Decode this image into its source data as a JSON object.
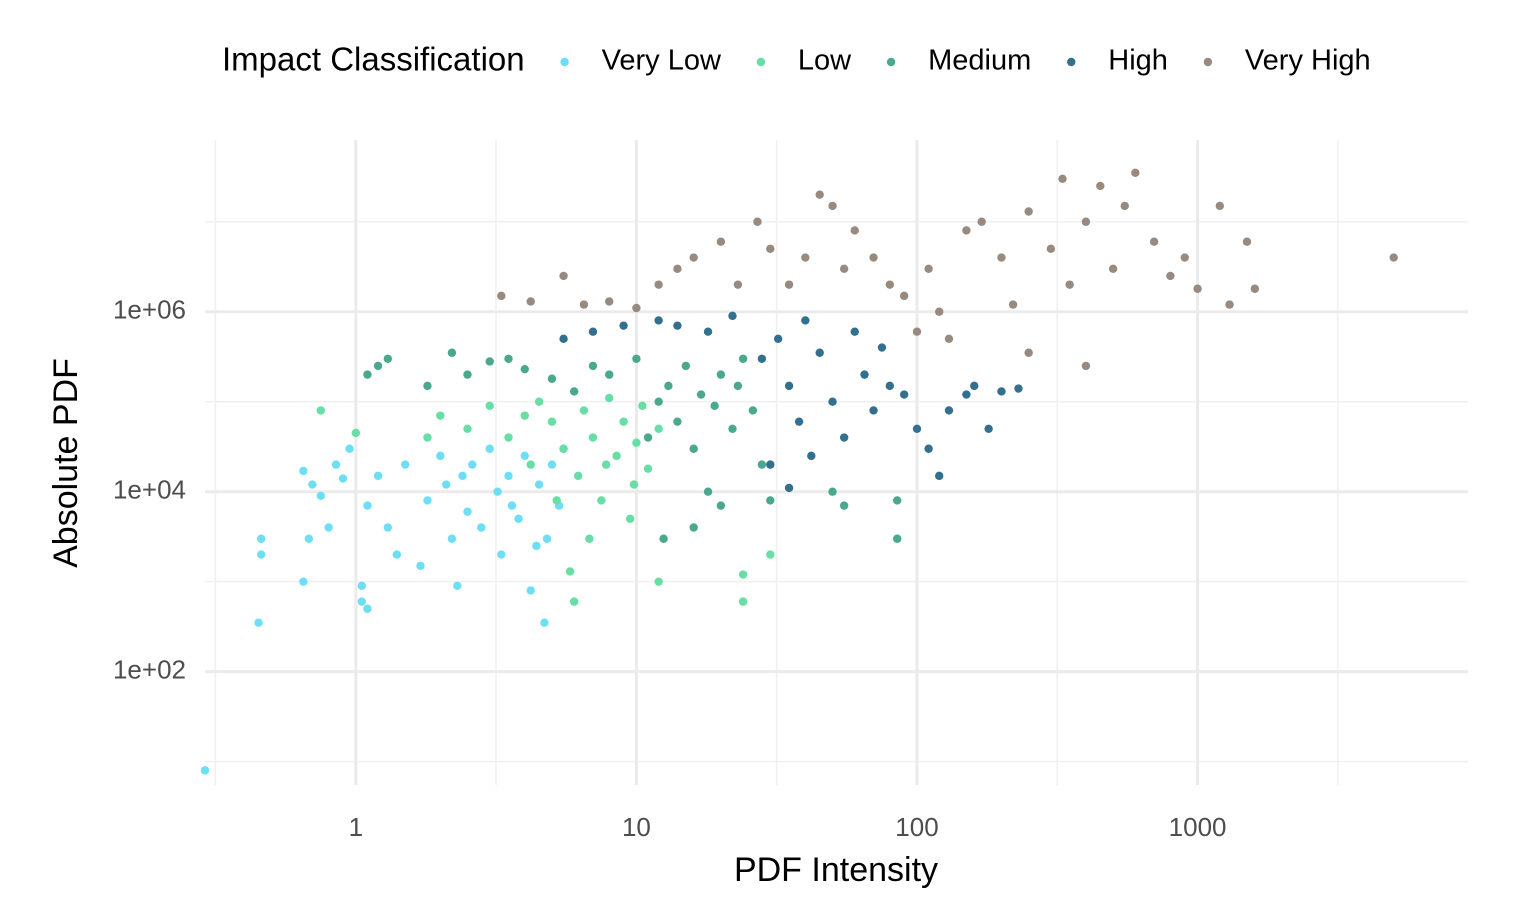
{
  "chart_data": {
    "type": "scatter",
    "xlabel": "PDF Intensity",
    "ylabel": "Absolute PDF",
    "legend_title": "Impact Classification",
    "legend": "top",
    "log_x": true,
    "log_y": true,
    "grid": true,
    "xlim": [
      0.29,
      9200
    ],
    "ylim": [
      5.5,
      81000000
    ],
    "xticks": [
      1,
      10,
      100,
      1000
    ],
    "xminor": [
      0.316,
      3.16,
      31.6,
      316,
      3162
    ],
    "yticks": [
      {
        "value": 100,
        "label": "1e+02"
      },
      {
        "value": 10000,
        "label": "1e+04"
      },
      {
        "value": 1000000,
        "label": "1e+06"
      }
    ],
    "yminor": [
      10,
      1000,
      100000,
      10000000
    ],
    "series": [
      {
        "name": "Very Low",
        "color": "#6ddff5",
        "x": [
          0.29,
          0.45,
          0.46,
          0.46,
          0.65,
          0.65,
          0.68,
          0.7,
          0.75,
          0.8,
          0.85,
          0.9,
          0.95,
          1.05,
          1.05,
          1.1,
          1.1,
          1.2,
          1.3,
          1.4,
          1.5,
          1.7,
          1.8,
          2.0,
          2.1,
          2.2,
          2.3,
          2.5,
          2.6,
          2.8,
          3.0,
          3.2,
          3.3,
          3.5,
          3.8,
          4.0,
          4.2,
          4.5,
          4.7,
          4.8,
          5.0,
          5.3,
          5.5,
          2.4,
          3.6,
          4.4
        ],
        "values": [
          8,
          350,
          2000,
          3000,
          1000,
          17000,
          3000,
          12000,
          9000,
          4000,
          20000,
          14000,
          30000,
          600,
          900,
          500,
          7000,
          15000,
          4000,
          2000,
          20000,
          1500,
          8000,
          25000,
          12000,
          3000,
          900,
          6000,
          20000,
          4000,
          30000,
          10000,
          2000,
          15000,
          5000,
          25000,
          800,
          12000,
          350,
          3000,
          20000,
          7000,
          30000,
          15000,
          7000,
          2500
        ]
      },
      {
        "name": "Low",
        "color": "#66dea4",
        "x": [
          0.75,
          1.0,
          1.8,
          2.0,
          2.5,
          3.0,
          3.5,
          4.0,
          4.5,
          5.0,
          5.5,
          5.8,
          6.0,
          6.2,
          6.5,
          7.0,
          7.5,
          8.0,
          8.5,
          9.0,
          9.5,
          10,
          10.5,
          11,
          12,
          12,
          6.8,
          7.8,
          5.2,
          24,
          24,
          30,
          4.2,
          9.8
        ],
        "values": [
          80000,
          45000,
          40000,
          70000,
          50000,
          90000,
          40000,
          70000,
          100000,
          60000,
          30000,
          1300,
          600,
          15000,
          80000,
          40000,
          8000,
          110000,
          25000,
          60000,
          5000,
          35000,
          90000,
          18000,
          1000,
          50000,
          3000,
          20000,
          8000,
          600,
          1200,
          2000,
          20000,
          12000
        ]
      },
      {
        "name": "Medium",
        "color": "#4aa88e",
        "x": [
          1.1,
          1.2,
          1.3,
          1.8,
          2.2,
          2.5,
          3.0,
          3.5,
          4,
          5,
          6,
          7,
          8,
          10,
          12,
          13,
          14,
          15,
          16,
          17,
          18,
          20,
          22,
          24,
          26,
          28,
          12.5,
          16,
          20,
          30,
          50,
          55,
          85,
          85,
          11,
          19,
          23
        ],
        "values": [
          200000,
          250000,
          300000,
          150000,
          350000,
          200000,
          280000,
          300000,
          230000,
          180000,
          130000,
          250000,
          200000,
          300000,
          100000,
          150000,
          60000,
          250000,
          30000,
          120000,
          10000,
          200000,
          50000,
          300000,
          80000,
          20000,
          3000,
          4000,
          7000,
          8000,
          10000,
          7000,
          3000,
          8000,
          40000,
          90000,
          150000
        ]
      },
      {
        "name": "High",
        "color": "#33708f",
        "x": [
          5.5,
          7,
          9,
          12,
          14,
          18,
          22,
          28,
          32,
          35,
          38,
          40,
          42,
          45,
          50,
          55,
          60,
          65,
          70,
          75,
          80,
          90,
          100,
          110,
          120,
          130,
          150,
          160,
          200,
          230,
          180,
          35,
          30
        ],
        "values": [
          500000,
          600000,
          700000,
          800000,
          700000,
          600000,
          900000,
          300000,
          500000,
          150000,
          60000,
          800000,
          25000,
          350000,
          100000,
          40000,
          600000,
          200000,
          80000,
          400000,
          150000,
          120000,
          50000,
          30000,
          15000,
          80000,
          120000,
          150000,
          130000,
          140000,
          50000,
          11000,
          20000
        ]
      },
      {
        "name": "Very High",
        "color": "#988a7f",
        "x": [
          3.3,
          4.2,
          5.5,
          6.5,
          8,
          10,
          12,
          14,
          16,
          20,
          23,
          27,
          30,
          35,
          40,
          45,
          50,
          55,
          60,
          70,
          80,
          90,
          100,
          110,
          120,
          130,
          150,
          170,
          200,
          220,
          250,
          300,
          330,
          350,
          400,
          450,
          500,
          550,
          600,
          700,
          800,
          900,
          1000,
          1200,
          1300,
          1500,
          1600,
          5000,
          400,
          250
        ],
        "values": [
          1500000,
          1300000,
          2500000,
          1200000,
          1300000,
          1100000,
          2000000,
          3000000,
          4000000,
          6000000,
          2000000,
          10000000,
          5000000,
          2000000,
          4000000,
          20000000,
          15000000,
          3000000,
          8000000,
          4000000,
          2000000,
          1500000,
          600000,
          3000000,
          1000000,
          500000,
          8000000,
          10000000,
          4000000,
          1200000,
          13000000,
          5000000,
          30000000,
          2000000,
          10000000,
          25000000,
          3000000,
          15000000,
          35000000,
          6000000,
          2500000,
          4000000,
          1800000,
          15000000,
          1200000,
          6000000,
          1800000,
          4000000,
          250000,
          350000
        ]
      }
    ]
  }
}
